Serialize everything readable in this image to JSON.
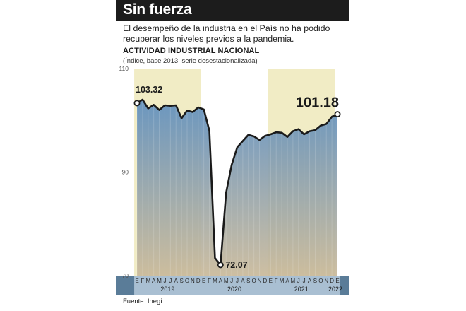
{
  "header": {
    "title": "Sin fuerza",
    "subtitle": "El desempeño de la industria en el País no ha podido recuperar los niveles previos a la pandemia."
  },
  "source": "Fuente: Inegi",
  "colors": {
    "title_bar": "#1c1c1c",
    "line": "#1a1a1a",
    "area_top": "#5f8fbf",
    "area_bottom": "#c9b99a",
    "highlight_band": "#f1ecc5",
    "axis_band": "#5a7c98"
  },
  "chart_data": {
    "type": "area",
    "title": "ACTIVIDAD INDUSTRIAL NACIONAL",
    "subtitle": "(Índice, base 2013, serie desestacionalizada)",
    "ylim": [
      70,
      110
    ],
    "yticks": [
      70,
      90,
      110
    ],
    "grid": "horizontal line at 90",
    "x": [
      "E",
      "F",
      "M",
      "A",
      "M",
      "J",
      "J",
      "A",
      "S",
      "O",
      "N",
      "D",
      "E",
      "F",
      "M",
      "A",
      "M",
      "J",
      "J",
      "A",
      "S",
      "O",
      "N",
      "D",
      "E",
      "F",
      "M",
      "A",
      "M",
      "J",
      "J",
      "A",
      "S",
      "O",
      "N",
      "D",
      "E"
    ],
    "years": [
      {
        "label": "2019",
        "start": 0,
        "end": 11
      },
      {
        "label": "2020",
        "start": 12,
        "end": 23
      },
      {
        "label": "2021",
        "start": 24,
        "end": 35
      },
      {
        "label": "2022",
        "start": 36,
        "end": 36
      }
    ],
    "highlight_ranges": [
      [
        0,
        11
      ],
      [
        24,
        35
      ]
    ],
    "series": [
      {
        "values": [
          103.32,
          104.0,
          102.3,
          103.0,
          102.0,
          102.9,
          102.8,
          102.9,
          100.4,
          101.9,
          101.6,
          102.5,
          102.1,
          98.0,
          73.4,
          72.07,
          86.0,
          91.4,
          94.8,
          96.0,
          97.2,
          96.9,
          96.2,
          97.0,
          97.3,
          97.7,
          97.6,
          96.8,
          97.9,
          98.3,
          97.3,
          97.9,
          98.1,
          99.0,
          99.3,
          100.7,
          101.18
        ]
      }
    ],
    "annotations": [
      {
        "index": 0,
        "text": "103.32",
        "size": "medium"
      },
      {
        "index": 15,
        "text": "72.07",
        "size": "medium"
      },
      {
        "index": 36,
        "text": "101.18",
        "size": "large"
      }
    ]
  }
}
